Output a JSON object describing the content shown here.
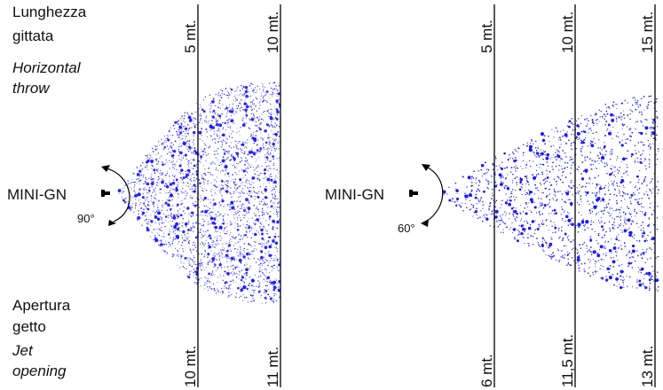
{
  "labels": {
    "throw_it_line1": "Lunghezza",
    "throw_it_line2": "gittata",
    "throw_en_line1": "Horizontal",
    "throw_en_line2": "throw",
    "opening_it_line1": "Apertura",
    "opening_it_line2": "getto",
    "opening_en_line1": "Jet",
    "opening_en_line2": "opening"
  },
  "left_diagram": {
    "nozzle_name": "MINI-GN",
    "angle": "90°",
    "throw_marks": [
      "5 mt.",
      "10 mt."
    ],
    "opening_marks": [
      "10 mt.",
      "11 mt."
    ]
  },
  "right_diagram": {
    "nozzle_name": "MINI-GN",
    "angle": "60°",
    "throw_marks": [
      "5 mt.",
      "10 mt.",
      "15 mt."
    ],
    "opening_marks": [
      "6 mt.",
      "11,5 mt.",
      "13 mt."
    ]
  },
  "colors": {
    "spray": "#1a1aff",
    "lines": "#000000",
    "text": "#111111"
  }
}
